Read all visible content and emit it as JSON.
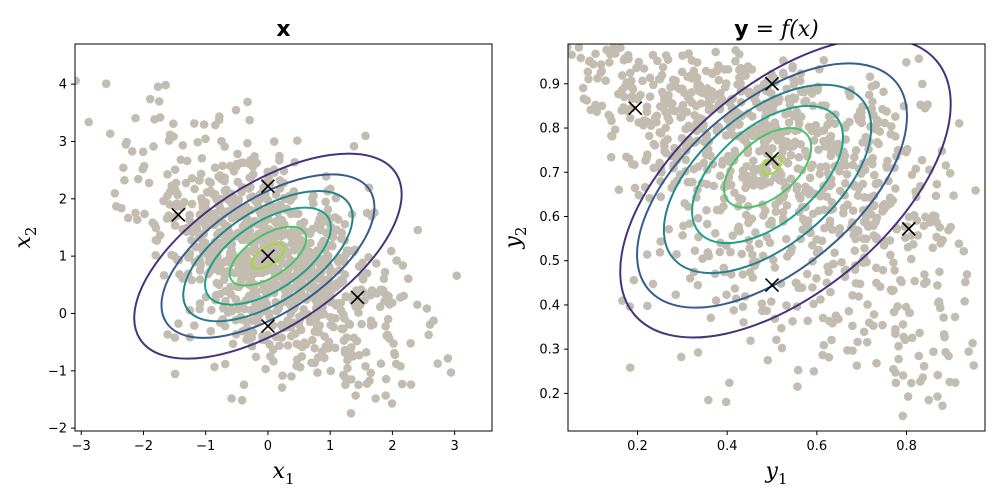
{
  "chart_data": [
    {
      "type": "scatter",
      "title_bold": "x",
      "title_rest": "",
      "xlabel_base": "x",
      "xlabel_sub": "1",
      "ylabel_base": "x",
      "ylabel_sub": "2",
      "xlim": [
        -3.1,
        3.6
      ],
      "ylim": [
        -2.05,
        4.7
      ],
      "xticks": [
        -3,
        -2,
        -1,
        0,
        1,
        2,
        3
      ],
      "yticks": [
        -2,
        -1,
        0,
        1,
        2,
        3,
        4
      ],
      "tick_decimals": 0,
      "grid": false,
      "colors": {
        "points": "#c3bdb1",
        "contours": [
          "#46337e",
          "#365c8d",
          "#277f8e",
          "#1fa187",
          "#4ac16d",
          "#a0da39"
        ],
        "markers": "#000000"
      },
      "ellipses": [
        {
          "cx": 0,
          "cy": 1,
          "rx": 2.45,
          "ry": 1.25,
          "angle": -33
        },
        {
          "cx": 0,
          "cy": 1,
          "rx": 1.95,
          "ry": 1.0,
          "angle": -33
        },
        {
          "cx": 0,
          "cy": 1,
          "rx": 1.55,
          "ry": 0.8,
          "angle": -33
        },
        {
          "cx": 0,
          "cy": 1,
          "rx": 1.15,
          "ry": 0.6,
          "angle": -33
        },
        {
          "cx": 0,
          "cy": 1,
          "rx": 0.7,
          "ry": 0.36,
          "angle": -33
        },
        {
          "cx": 0,
          "cy": 1,
          "rx": 0.3,
          "ry": 0.15,
          "angle": -33
        }
      ],
      "markers": [
        {
          "x": 0.0,
          "y": 1.0
        },
        {
          "x": 0.0,
          "y": 2.22
        },
        {
          "x": 0.0,
          "y": -0.22
        },
        {
          "x": -1.44,
          "y": 1.72
        },
        {
          "x": 1.44,
          "y": 0.28
        }
      ],
      "scatter": {
        "n": 1000,
        "mean": [
          0,
          1
        ],
        "cov": [
          [
            1,
            -0.5
          ],
          [
            -0.5,
            1
          ]
        ]
      }
    },
    {
      "type": "scatter",
      "title_bold": "y",
      "title_rest": " = f(x)",
      "xlabel_base": "y",
      "xlabel_sub": "1",
      "ylabel_base": "y",
      "ylabel_sub": "2",
      "xlim": [
        0.045,
        0.975
      ],
      "ylim": [
        0.115,
        0.99
      ],
      "xticks": [
        0.2,
        0.4,
        0.6,
        0.8
      ],
      "yticks": [
        0.2,
        0.3,
        0.4,
        0.5,
        0.6,
        0.7,
        0.8,
        0.9
      ],
      "tick_decimals": 1,
      "grid": false,
      "colors": {
        "points": "#c3bdb1",
        "contours": [
          "#46337e",
          "#365c8d",
          "#277f8e",
          "#1fa187",
          "#4ac16d",
          "#a0da39"
        ],
        "markers": "#000000"
      },
      "ellipses": [
        {
          "cx": 0.53,
          "cy": 0.665,
          "rx": 0.44,
          "ry": 0.235,
          "angle": -40
        },
        {
          "cx": 0.5,
          "cy": 0.67,
          "rx": 0.36,
          "ry": 0.19,
          "angle": -40
        },
        {
          "cx": 0.49,
          "cy": 0.685,
          "rx": 0.275,
          "ry": 0.15,
          "angle": -40
        },
        {
          "cx": 0.49,
          "cy": 0.695,
          "rx": 0.2,
          "ry": 0.11,
          "angle": -40
        },
        {
          "cx": 0.49,
          "cy": 0.71,
          "rx": 0.115,
          "ry": 0.065,
          "angle": -40
        },
        {
          "cx": 0.5,
          "cy": 0.715,
          "rx": 0.025,
          "ry": 0.015,
          "angle": -40
        }
      ],
      "markers": [
        {
          "x": 0.5,
          "y": 0.73
        },
        {
          "x": 0.5,
          "y": 0.9
        },
        {
          "x": 0.5,
          "y": 0.445
        },
        {
          "x": 0.195,
          "y": 0.845
        },
        {
          "x": 0.805,
          "y": 0.572
        }
      ],
      "scatter": {
        "n": 1000,
        "mean": [
          0,
          1
        ],
        "cov": [
          [
            1,
            -0.5
          ],
          [
            -0.5,
            1
          ]
        ],
        "transform": "sigmoid"
      }
    }
  ]
}
